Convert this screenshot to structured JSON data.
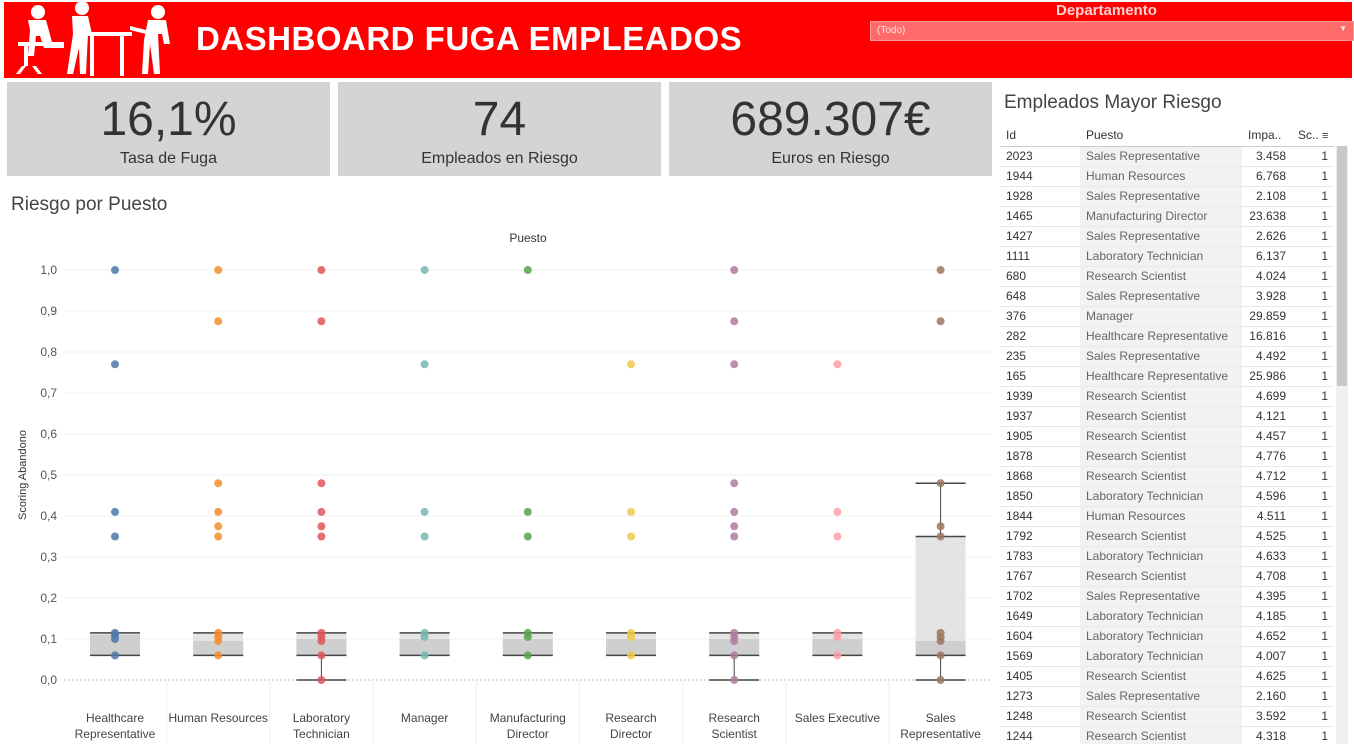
{
  "header": {
    "title": "DASHBOARD FUGA EMPLEADOS",
    "filter_label": "Departamento",
    "filter_value": "(Todo)"
  },
  "kpis": [
    {
      "value": "16,1%",
      "label": "Tasa de Fuga"
    },
    {
      "value": "74",
      "label": "Empleados en Riesgo"
    },
    {
      "value": "689.307€",
      "label": "Euros en Riesgo"
    }
  ],
  "table": {
    "title": "Empleados Mayor Riesgo",
    "columns": [
      "Id",
      "Puesto",
      "Impa..",
      "Sc.."
    ],
    "rows": [
      [
        "2023",
        "Sales Representative",
        "3.458",
        "1"
      ],
      [
        "1944",
        "Human Resources",
        "6.768",
        "1"
      ],
      [
        "1928",
        "Sales Representative",
        "2.108",
        "1"
      ],
      [
        "1465",
        "Manufacturing Director",
        "23.638",
        "1"
      ],
      [
        "1427",
        "Sales Representative",
        "2.626",
        "1"
      ],
      [
        "1111",
        "Laboratory Technician",
        "6.137",
        "1"
      ],
      [
        "680",
        "Research Scientist",
        "4.024",
        "1"
      ],
      [
        "648",
        "Sales Representative",
        "3.928",
        "1"
      ],
      [
        "376",
        "Manager",
        "29.859",
        "1"
      ],
      [
        "282",
        "Healthcare Representative",
        "16.816",
        "1"
      ],
      [
        "235",
        "Sales Representative",
        "4.492",
        "1"
      ],
      [
        "165",
        "Healthcare Representative",
        "25.986",
        "1"
      ],
      [
        "1939",
        "Research Scientist",
        "4.699",
        "1"
      ],
      [
        "1937",
        "Research Scientist",
        "4.121",
        "1"
      ],
      [
        "1905",
        "Research Scientist",
        "4.457",
        "1"
      ],
      [
        "1878",
        "Research Scientist",
        "4.776",
        "1"
      ],
      [
        "1868",
        "Research Scientist",
        "4.712",
        "1"
      ],
      [
        "1850",
        "Laboratory Technician",
        "4.596",
        "1"
      ],
      [
        "1844",
        "Human Resources",
        "4.511",
        "1"
      ],
      [
        "1792",
        "Research Scientist",
        "4.525",
        "1"
      ],
      [
        "1783",
        "Laboratory Technician",
        "4.633",
        "1"
      ],
      [
        "1767",
        "Research Scientist",
        "4.708",
        "1"
      ],
      [
        "1702",
        "Sales Representative",
        "4.395",
        "1"
      ],
      [
        "1649",
        "Laboratory Technician",
        "4.185",
        "1"
      ],
      [
        "1604",
        "Laboratory Technician",
        "4.652",
        "1"
      ],
      [
        "1569",
        "Laboratory Technician",
        "4.007",
        "1"
      ],
      [
        "1405",
        "Research Scientist",
        "4.625",
        "1"
      ],
      [
        "1273",
        "Sales Representative",
        "2.160",
        "1"
      ],
      [
        "1248",
        "Research Scientist",
        "3.592",
        "1"
      ],
      [
        "1244",
        "Research Scientist",
        "4.318",
        "1"
      ]
    ]
  },
  "chart_data": {
    "type": "scatter",
    "title": "Riesgo por Puesto",
    "xlabel": "Puesto",
    "ylabel": "Scoring Abandono",
    "ylim": [
      0,
      1.0
    ],
    "yticks": [
      "1,0",
      "0,9",
      "0,8",
      "0,7",
      "0,6",
      "0,5",
      "0,4",
      "0,3",
      "0,2",
      "0,1",
      "0,0"
    ],
    "ytick_values": [
      1.0,
      0.9,
      0.8,
      0.7,
      0.6,
      0.5,
      0.4,
      0.3,
      0.2,
      0.1,
      0.0
    ],
    "categories": [
      {
        "name": "Healthcare Representative",
        "label": [
          "Healthcare",
          "Representative"
        ],
        "color": "#4e79a7",
        "points": [
          1.0,
          0.77,
          0.41,
          0.35,
          0.115,
          0.11,
          0.1,
          0.06
        ],
        "box": [
          0.06,
          0.11,
          0.115
        ]
      },
      {
        "name": "Human Resources",
        "label": [
          "Human Resources"
        ],
        "color": "#f28e2b",
        "points": [
          1.0,
          0.875,
          0.48,
          0.41,
          0.375,
          0.35,
          0.115,
          0.105,
          0.095,
          0.06
        ],
        "box": [
          0.06,
          0.095,
          0.115
        ]
      },
      {
        "name": "Laboratory Technician",
        "label": [
          "Laboratory",
          "Technician"
        ],
        "color": "#e15759",
        "points": [
          1.0,
          0.875,
          0.48,
          0.41,
          0.375,
          0.35,
          0.115,
          0.105,
          0.095,
          0.06,
          0.0
        ],
        "box": [
          0.06,
          0.1,
          0.115
        ],
        "whisker_low": 0.0
      },
      {
        "name": "Manager",
        "label": [
          "Manager"
        ],
        "color": "#76b7b2",
        "points": [
          1.0,
          0.77,
          0.41,
          0.35,
          0.115,
          0.105,
          0.06
        ],
        "box": [
          0.06,
          0.1,
          0.115
        ]
      },
      {
        "name": "Manufacturing Director",
        "label": [
          "Manufacturing",
          "Director"
        ],
        "color": "#59a14f",
        "points": [
          1.0,
          0.41,
          0.35,
          0.115,
          0.105,
          0.06
        ],
        "box": [
          0.06,
          0.1,
          0.115
        ]
      },
      {
        "name": "Research Director",
        "label": [
          "Research",
          "Director"
        ],
        "color": "#edc948",
        "points": [
          0.77,
          0.41,
          0.35,
          0.115,
          0.105,
          0.06
        ],
        "box": [
          0.06,
          0.1,
          0.115
        ]
      },
      {
        "name": "Research Scientist",
        "label": [
          "Research",
          "Scientist"
        ],
        "color": "#b07aa1",
        "points": [
          1.0,
          0.875,
          0.77,
          0.48,
          0.41,
          0.375,
          0.35,
          0.115,
          0.105,
          0.095,
          0.06,
          0.0
        ],
        "box": [
          0.06,
          0.1,
          0.115
        ],
        "whisker_low": 0.0
      },
      {
        "name": "Sales Executive",
        "label": [
          "Sales Executive"
        ],
        "color": "#ff9da7",
        "points": [
          0.77,
          0.41,
          0.35,
          0.115,
          0.105,
          0.06
        ],
        "box": [
          0.06,
          0.1,
          0.115
        ]
      },
      {
        "name": "Sales Representative",
        "label": [
          "Sales",
          "Representative"
        ],
        "color": "#9c755f",
        "points": [
          1.0,
          0.875,
          0.48,
          0.375,
          0.35,
          0.115,
          0.105,
          0.095,
          0.06,
          0.0
        ],
        "box": [
          0.06,
          0.095,
          0.35
        ],
        "whisker_low": 0.0,
        "whisker_high": 0.48
      }
    ]
  }
}
